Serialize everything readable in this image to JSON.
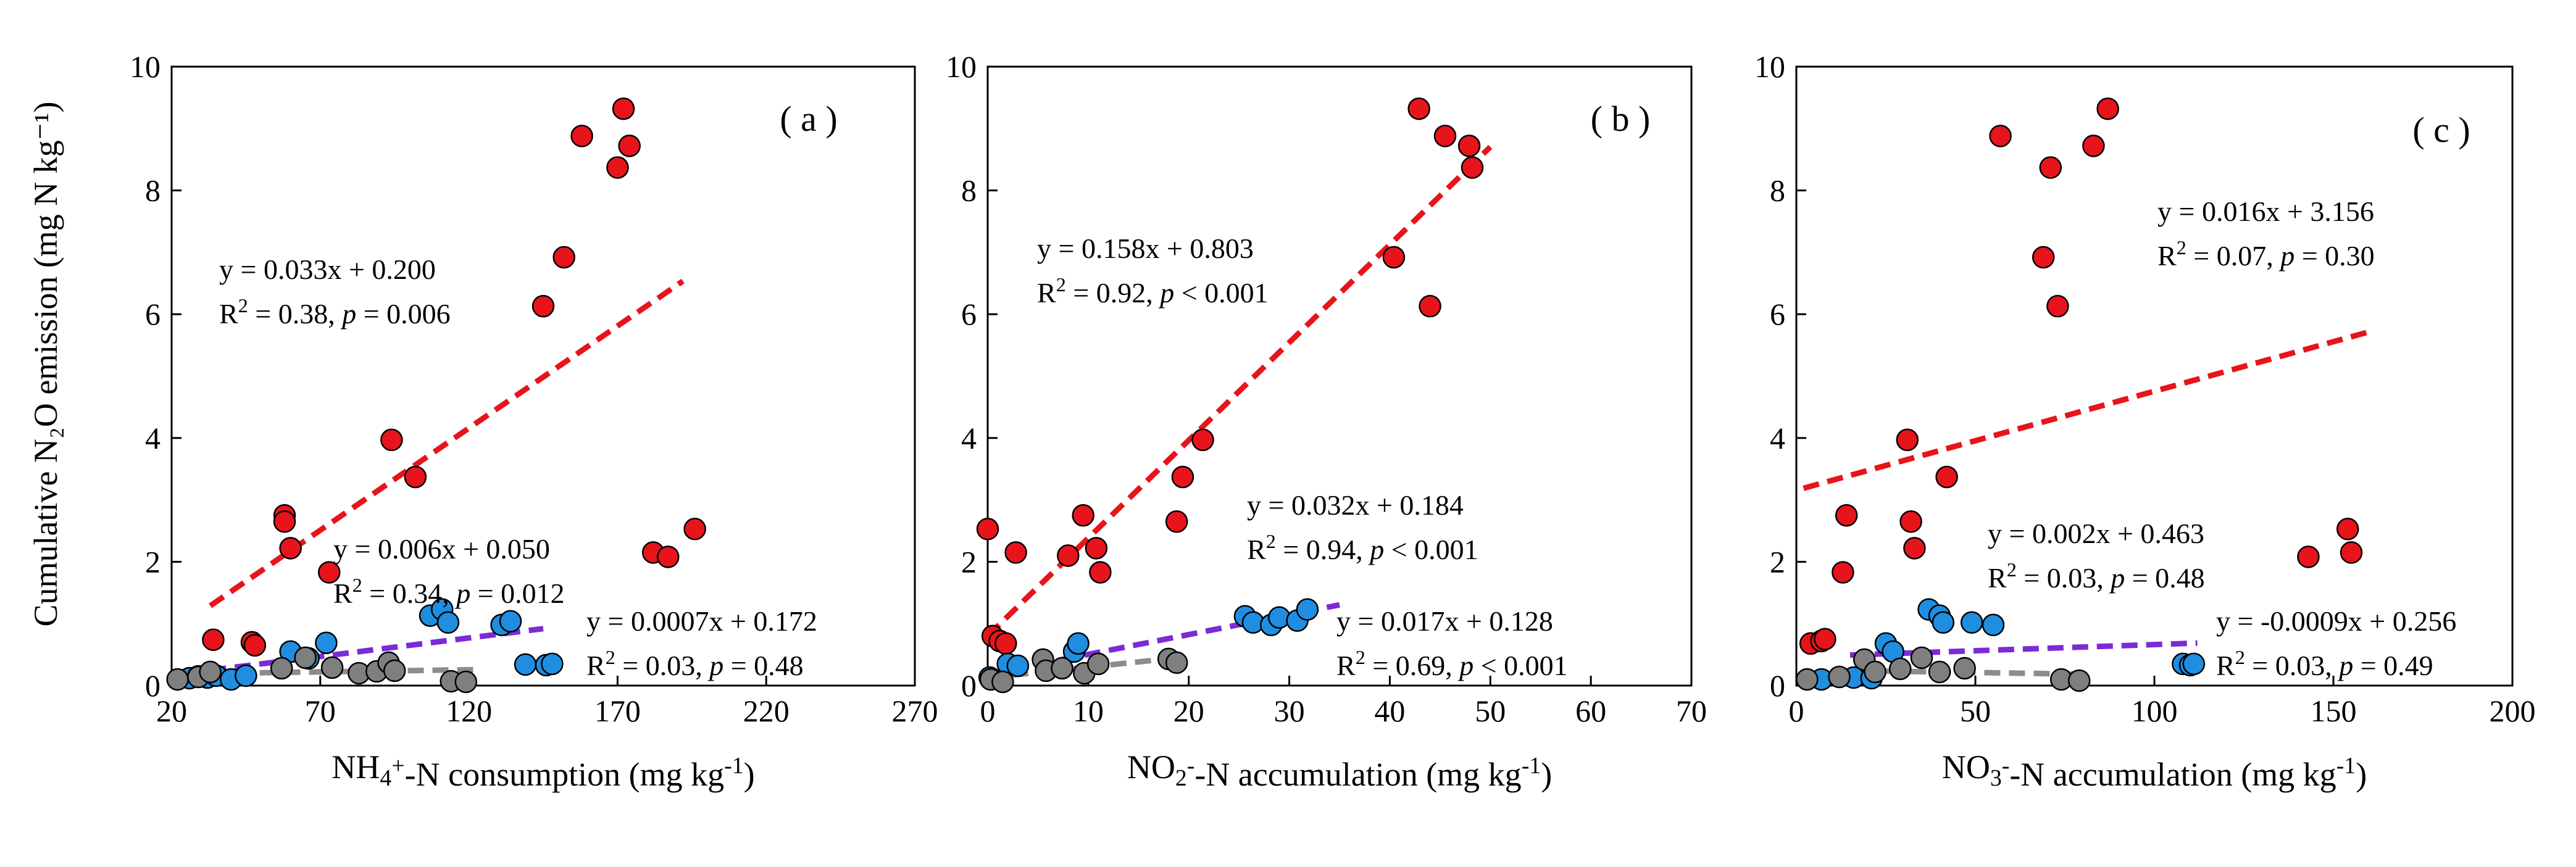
{
  "y_axis_title": "Cumulative N₂O emission (mg N kg⁻¹)",
  "colors": {
    "red": "#e8141b",
    "blue": "#1f8ee0",
    "gray": "#7f7f7f",
    "purple": "#7b2bd6",
    "grayline": "#8c8c8c"
  },
  "chart_data": [
    {
      "type": "scatter",
      "panel_label": "( a )",
      "xlabel": "NH₄⁺-N consumption (mg kg⁻¹)",
      "ylabel": "Cumulative N₂O emission (mg N kg⁻¹)",
      "xlim": [
        20,
        270
      ],
      "ylim": [
        0,
        10
      ],
      "xticks": [
        "20",
        "70",
        "120",
        "170",
        "220",
        "270"
      ],
      "yticks": [
        "0",
        "2",
        "4",
        "6",
        "8",
        "10"
      ],
      "series": [
        {
          "color": "red",
          "points": [
            [
              34,
              0.74
            ],
            [
              47,
              0.7
            ],
            [
              48,
              0.65
            ],
            [
              58,
              2.75
            ],
            [
              58,
              2.65
            ],
            [
              60,
              2.22
            ],
            [
              73,
              1.83
            ],
            [
              94,
              3.97
            ],
            [
              102,
              3.37
            ],
            [
              145,
              6.13
            ],
            [
              152,
              6.92
            ],
            [
              158,
              8.88
            ],
            [
              170,
              8.37
            ],
            [
              172,
              9.32
            ],
            [
              174,
              8.72
            ],
            [
              182,
              2.15
            ],
            [
              187,
              2.08
            ],
            [
              196,
              2.53
            ]
          ]
        },
        {
          "color": "blue",
          "points": [
            [
              26,
              0.12
            ],
            [
              29,
              0.15
            ],
            [
              32,
              0.13
            ],
            [
              35,
              0.16
            ],
            [
              40,
              0.1
            ],
            [
              45,
              0.16
            ],
            [
              60,
              0.55
            ],
            [
              66,
              0.44
            ],
            [
              72,
              0.69
            ],
            [
              107,
              1.13
            ],
            [
              111,
              1.23
            ],
            [
              113,
              1.02
            ],
            [
              131,
              0.98
            ],
            [
              134,
              1.04
            ],
            [
              139,
              0.34
            ],
            [
              146,
              0.33
            ],
            [
              148,
              0.35
            ]
          ]
        },
        {
          "color": "gray",
          "points": [
            [
              22,
              0.1
            ],
            [
              29,
              0.14
            ],
            [
              33,
              0.22
            ],
            [
              57,
              0.28
            ],
            [
              65,
              0.45
            ],
            [
              74,
              0.29
            ],
            [
              83,
              0.2
            ],
            [
              89,
              0.23
            ],
            [
              93,
              0.37
            ],
            [
              95,
              0.24
            ],
            [
              114,
              0.07
            ],
            [
              119,
              0.06
            ]
          ]
        }
      ],
      "fits": [
        {
          "color": "red",
          "slope": 0.033,
          "intercept": 0.2,
          "x_range": [
            33,
            192
          ],
          "eq": "y = 0.033x + 0.200",
          "r2_prefix": "R",
          "r2_sup": "2",
          "r2_value": " = 0.38, ",
          "p_label": "p",
          "p_value": " = 0.006"
        },
        {
          "color": "purple",
          "slope": 0.006,
          "intercept": 0.05,
          "x_range": [
            33,
            145
          ],
          "eq": "y = 0.006x + 0.050",
          "r2_prefix": "R",
          "r2_sup": "2",
          "r2_value": " = 0.34, ",
          "p_label": "p",
          "p_value": " = 0.012"
        },
        {
          "color": "grayline",
          "slope": 0.0007,
          "intercept": 0.172,
          "x_range": [
            33,
            122
          ],
          "eq": "y = 0.0007x + 0.172",
          "r2_prefix": "R",
          "r2_sup": "2",
          "r2_value": " = 0.03, ",
          "p_label": "p",
          "p_value": " = 0.48"
        }
      ]
    },
    {
      "type": "scatter",
      "panel_label": "( b )",
      "xlabel": "NO₂⁻-N accumulation (mg kg⁻¹)",
      "ylabel": "Cumulative N₂O emission (mg N kg⁻¹)",
      "xlim": [
        0,
        70
      ],
      "ylim": [
        0,
        10
      ],
      "xticks": [
        "0",
        "10",
        "20",
        "30",
        "40",
        "50",
        "60",
        "70"
      ],
      "yticks": [
        "0",
        "2",
        "4",
        "6",
        "8",
        "10"
      ],
      "series": [
        {
          "color": "red",
          "points": [
            [
              0,
              2.53
            ],
            [
              0.5,
              0.8
            ],
            [
              1.2,
              0.72
            ],
            [
              1.8,
              0.68
            ],
            [
              2.8,
              2.15
            ],
            [
              8,
              2.1
            ],
            [
              9.5,
              2.75
            ],
            [
              10.8,
              2.22
            ],
            [
              11.2,
              1.83
            ],
            [
              18.8,
              2.65
            ],
            [
              19.4,
              3.37
            ],
            [
              21.4,
              3.97
            ],
            [
              40.4,
              6.92
            ],
            [
              42.9,
              9.32
            ],
            [
              44,
              6.13
            ],
            [
              45.5,
              8.88
            ],
            [
              47.9,
              8.72
            ],
            [
              48.2,
              8.37
            ]
          ]
        },
        {
          "color": "blue",
          "points": [
            [
              0.2,
              0.13
            ],
            [
              2,
              0.35
            ],
            [
              3,
              0.32
            ],
            [
              8.6,
              0.55
            ],
            [
              9,
              0.68
            ],
            [
              25.6,
              1.12
            ],
            [
              26.4,
              1.02
            ],
            [
              28.2,
              0.98
            ],
            [
              29,
              1.1
            ],
            [
              30.8,
              1.05
            ],
            [
              31.8,
              1.23
            ]
          ]
        },
        {
          "color": "gray",
          "points": [
            [
              0.3,
              0.1
            ],
            [
              1.5,
              0.06
            ],
            [
              5.5,
              0.42
            ],
            [
              5.8,
              0.24
            ],
            [
              7.4,
              0.28
            ],
            [
              9.6,
              0.2
            ],
            [
              11,
              0.35
            ],
            [
              18,
              0.43
            ],
            [
              18.8,
              0.37
            ]
          ]
        }
      ],
      "fits": [
        {
          "color": "red",
          "slope": 0.158,
          "intercept": 0.803,
          "x_range": [
            0,
            50
          ],
          "eq": "y = 0.158x + 0.803",
          "r2_prefix": "R",
          "r2_sup": "2",
          "r2_value": " = 0.92, ",
          "p_label": "p",
          "p_value": " < 0.001"
        },
        {
          "color": "purple",
          "slope": 0.032,
          "intercept": 0.184,
          "x_range": [
            0,
            35
          ],
          "eq": "y = 0.032x + 0.184",
          "r2_prefix": "R",
          "r2_sup": "2",
          "r2_value": " = 0.94, ",
          "p_label": "p",
          "p_value": " < 0.001"
        },
        {
          "color": "grayline",
          "slope": 0.017,
          "intercept": 0.128,
          "x_range": [
            0,
            19
          ],
          "eq": "y = 0.017x + 0.128",
          "r2_prefix": "R",
          "r2_sup": "2",
          "r2_value": " = 0.69, ",
          "p_label": "p",
          "p_value": " < 0.001"
        }
      ]
    },
    {
      "type": "scatter",
      "panel_label": "( c )",
      "xlabel": "NO₃⁻-N accumulation (mg kg⁻¹)",
      "ylabel": "Cumulative N₂O emission (mg N kg⁻¹)",
      "xlim": [
        0,
        200
      ],
      "ylim": [
        0,
        10
      ],
      "xticks": [
        "0",
        "50",
        "100",
        "150",
        "200"
      ],
      "yticks": [
        "0",
        "2",
        "4",
        "6",
        "8",
        "10"
      ],
      "series": [
        {
          "color": "red",
          "points": [
            [
              4,
              0.68
            ],
            [
              7,
              0.72
            ],
            [
              8,
              0.75
            ],
            [
              13,
              1.83
            ],
            [
              14,
              2.75
            ],
            [
              31,
              3.97
            ],
            [
              32,
              2.65
            ],
            [
              33,
              2.22
            ],
            [
              42,
              3.37
            ],
            [
              57,
              8.88
            ],
            [
              69,
              6.92
            ],
            [
              71,
              8.37
            ],
            [
              73,
              6.13
            ],
            [
              83,
              8.72
            ],
            [
              87,
              9.32
            ],
            [
              143,
              2.08
            ],
            [
              154,
              2.53
            ],
            [
              155,
              2.15
            ]
          ]
        },
        {
          "color": "blue",
          "points": [
            [
              7,
              0.1
            ],
            [
              16,
              0.13
            ],
            [
              21,
              0.12
            ],
            [
              25,
              0.68
            ],
            [
              27,
              0.55
            ],
            [
              37,
              1.23
            ],
            [
              40,
              1.13
            ],
            [
              41,
              1.02
            ],
            [
              49,
              1.02
            ],
            [
              55,
              0.98
            ],
            [
              108,
              0.35
            ],
            [
              110,
              0.33
            ],
            [
              111,
              0.35
            ]
          ]
        },
        {
          "color": "gray",
          "points": [
            [
              3,
              0.1
            ],
            [
              12,
              0.14
            ],
            [
              19,
              0.42
            ],
            [
              22,
              0.22
            ],
            [
              29,
              0.27
            ],
            [
              35,
              0.45
            ],
            [
              40,
              0.22
            ],
            [
              47,
              0.28
            ],
            [
              74,
              0.1
            ],
            [
              79,
              0.08
            ]
          ]
        }
      ],
      "fits": [
        {
          "color": "red",
          "slope": 0.016,
          "intercept": 3.156,
          "x_range": [
            2,
            160
          ],
          "eq": "y = 0.016x + 3.156",
          "r2_prefix": "R",
          "r2_sup": "2",
          "r2_value": " = 0.07, ",
          "p_label": "p",
          "p_value": " = 0.30"
        },
        {
          "color": "purple",
          "slope": 0.002,
          "intercept": 0.463,
          "x_range": [
            15,
            112
          ],
          "eq": "y = 0.002x + 0.463",
          "r2_prefix": "R",
          "r2_sup": "2",
          "r2_value": " = 0.03, ",
          "p_label": "p",
          "p_value": " = 0.48"
        },
        {
          "color": "grayline",
          "slope": -0.0009,
          "intercept": 0.256,
          "x_range": [
            18,
            80
          ],
          "eq": "y = -0.0009x + 0.256",
          "r2_prefix": "R",
          "r2_sup": "2",
          "r2_value": " = 0.03, ",
          "p_label": "p",
          "p_value": " = 0.49"
        }
      ]
    }
  ]
}
